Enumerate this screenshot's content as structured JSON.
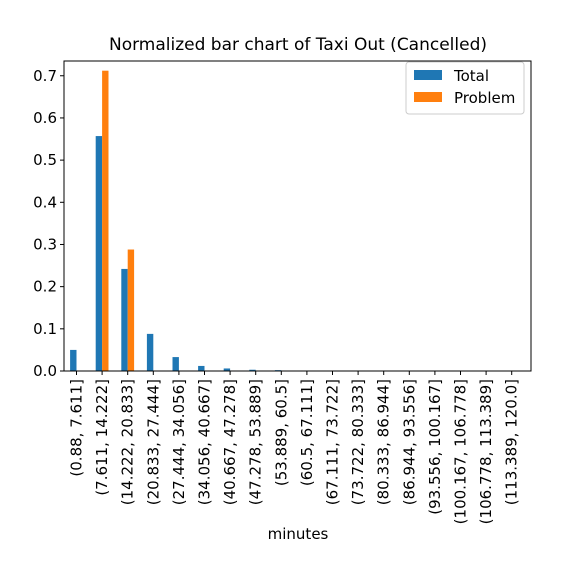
{
  "chart_data": {
    "type": "bar",
    "title": "Normalized bar chart of Taxi Out (Cancelled)",
    "xlabel": "minutes",
    "ylabel": "",
    "ylim": [
      0,
      0.735
    ],
    "yticks": [
      "0.0",
      "0.1",
      "0.2",
      "0.3",
      "0.4",
      "0.5",
      "0.6",
      "0.7"
    ],
    "categories": [
      "(0.88, 7.611]",
      "(7.611, 14.222]",
      "(14.222, 20.833]",
      "(20.833, 27.444]",
      "(27.444, 34.056]",
      "(34.056, 40.667]",
      "(40.667, 47.278]",
      "(47.278, 53.889]",
      "(53.889, 60.5]",
      "(60.5, 67.111]",
      "(67.111, 73.722]",
      "(73.722, 80.333]",
      "(80.333, 86.944]",
      "(86.944, 93.556]",
      "(93.556, 100.167]",
      "(100.167, 106.778]",
      "(106.778, 113.389]",
      "(113.389, 120.0]"
    ],
    "series": [
      {
        "name": "Total",
        "color": "#1f77b4",
        "values": [
          0.05,
          0.557,
          0.242,
          0.088,
          0.033,
          0.012,
          0.006,
          0.003,
          0.002,
          0.001,
          0.0005,
          0.0003,
          0.0002,
          0.0001,
          0.0001,
          0.0001,
          0.0001,
          0.0001
        ]
      },
      {
        "name": "Problem",
        "color": "#ff7f0e",
        "values": [
          0,
          0.712,
          0.288,
          0,
          0,
          0,
          0,
          0,
          0,
          0,
          0,
          0,
          0,
          0,
          0,
          0,
          0,
          0
        ]
      }
    ],
    "legend": "top-right",
    "grid": false
  }
}
